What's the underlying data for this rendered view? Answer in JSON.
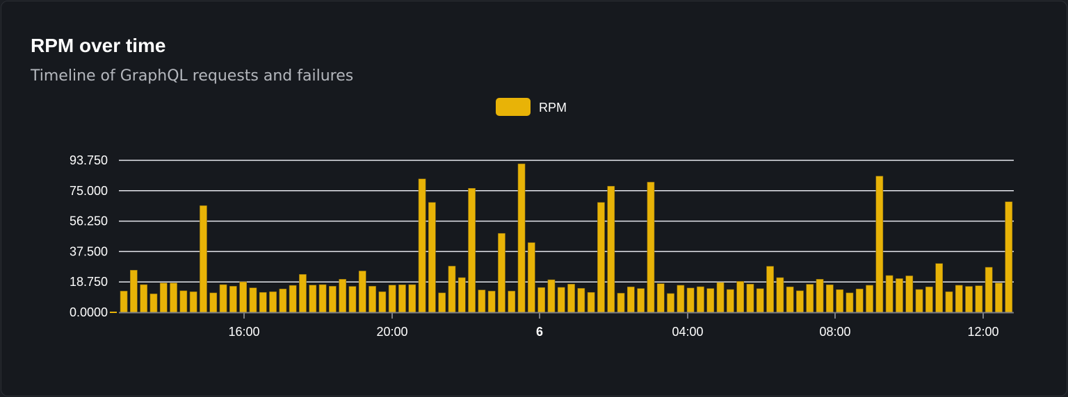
{
  "card": {
    "title": "RPM over time",
    "subtitle": "Timeline of GraphQL requests and failures"
  },
  "chart_data": {
    "type": "bar",
    "title": "RPM over time",
    "subtitle": "Timeline of GraphQL requests and failures",
    "legend": {
      "position": "top-center",
      "entries": [
        "RPM"
      ]
    },
    "series": [
      {
        "name": "RPM",
        "color": "#e8b307",
        "values": [
          13.1,
          26.0,
          17.1,
          11.4,
          18.1,
          18.1,
          13.3,
          12.7,
          65.8,
          12.0,
          17.1,
          16.1,
          18.8,
          15.1,
          12.3,
          12.7,
          14.4,
          16.6,
          23.4,
          16.8,
          17.1,
          16.1,
          20.4,
          16.0,
          25.5,
          16.1,
          12.7,
          16.8,
          17.0,
          17.1,
          82.3,
          67.8,
          12.0,
          28.5,
          21.4,
          76.5,
          13.8,
          13.1,
          48.7,
          13.1,
          91.6,
          43.0,
          15.3,
          20.1,
          15.4,
          17.4,
          14.8,
          12.3,
          67.8,
          77.8,
          11.8,
          15.7,
          14.7,
          80.3,
          17.7,
          11.6,
          16.7,
          15.0,
          15.8,
          14.7,
          18.4,
          14.1,
          19.1,
          17.4,
          14.6,
          28.4,
          21.4,
          15.7,
          13.3,
          17.3,
          20.4,
          17.0,
          14.0,
          12.0,
          14.4,
          16.7,
          84.0,
          22.7,
          20.8,
          22.5,
          14.1,
          15.7,
          30.1,
          12.7,
          16.7,
          16.0,
          16.4,
          27.8,
          18.1,
          68.2
        ]
      }
    ],
    "x_ticks": [
      {
        "label": "16:00",
        "bold": false
      },
      {
        "label": "20:00",
        "bold": false
      },
      {
        "label": "6",
        "bold": true
      },
      {
        "label": "04:00",
        "bold": false
      },
      {
        "label": "08:00",
        "bold": false
      },
      {
        "label": "12:00",
        "bold": false
      }
    ],
    "y_ticks": [
      "0.0000",
      "18.750",
      "37.500",
      "56.250",
      "75.000",
      "93.750"
    ],
    "ylim": [
      0,
      93.75
    ],
    "grid": true,
    "xlabel": "",
    "ylabel": ""
  }
}
